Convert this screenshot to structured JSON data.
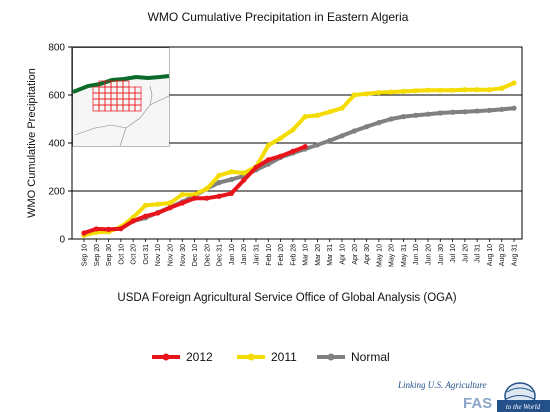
{
  "chart_data": {
    "type": "line",
    "title": "WMO Cumulative Precipitation in Eastern Algeria",
    "ylabel": "WMO Cumulative Precipitation",
    "xlabel": "",
    "ylim": [
      0,
      800
    ],
    "yticks": [
      0,
      200,
      400,
      600,
      800
    ],
    "grid": "horizontal",
    "categories": [
      "Sep 10",
      "Sep 20",
      "Sep 30",
      "Oct 10",
      "Oct 20",
      "Oct 31",
      "Nov 10",
      "Nov 20",
      "Nov 30",
      "Dec 10",
      "Dec 20",
      "Dec 31",
      "Jan 10",
      "Jan 20",
      "Jan 31",
      "Feb 10",
      "Feb 20",
      "Feb 28",
      "Mar 10",
      "Mar 20",
      "Mar 31",
      "Apr 10",
      "Apr 20",
      "Apr 30",
      "May 10",
      "May 20",
      "May 31",
      "Jun 10",
      "Jun 20",
      "Jun 30",
      "Jul 10",
      "Jul 20",
      "Jul 31",
      "Aug 10",
      "Aug 20",
      "Aug 31"
    ],
    "series": [
      {
        "name": "2012",
        "color": "#e8141c",
        "values": [
          25,
          42,
          40,
          43,
          75,
          95,
          108,
          130,
          150,
          170,
          170,
          178,
          190,
          245,
          298,
          330,
          345,
          365,
          385,
          null,
          null,
          null,
          null,
          null,
          null,
          null,
          null,
          null,
          null,
          null,
          null,
          null,
          null,
          null,
          null,
          null
        ]
      },
      {
        "name": "2011",
        "color": "#f4dc00",
        "values": [
          15,
          28,
          30,
          50,
          90,
          140,
          145,
          150,
          185,
          185,
          210,
          265,
          280,
          275,
          300,
          390,
          420,
          455,
          510,
          515,
          530,
          545,
          600,
          605,
          610,
          612,
          615,
          618,
          620,
          620,
          620,
          622,
          622,
          622,
          628,
          650
        ]
      },
      {
        "name": "Normal",
        "color": "#808080",
        "values": [
          null,
          null,
          null,
          null,
          75,
          88,
          110,
          132,
          155,
          180,
          210,
          235,
          248,
          262,
          288,
          312,
          340,
          358,
          375,
          392,
          410,
          430,
          450,
          468,
          485,
          500,
          510,
          515,
          520,
          525,
          528,
          530,
          533,
          536,
          540,
          545
        ]
      }
    ],
    "legend_position": "bottom"
  },
  "source_note": "USDA Foreign Agricultural Service Office of Global Analysis (OGA)",
  "map_inset_icon": "algeria-region-map-icon",
  "branding": {
    "tagline": "Linking U.S. Agriculture",
    "fas": "FAS",
    "world": "to the World"
  }
}
